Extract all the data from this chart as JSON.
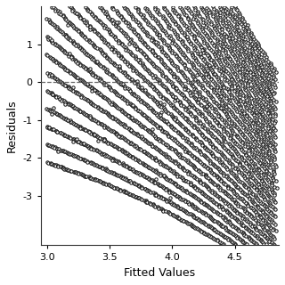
{
  "xlabel": "Fitted Values",
  "ylabel": "Residuals",
  "xlim": [
    2.95,
    4.85
  ],
  "ylim": [
    -4.3,
    2.0
  ],
  "xticks": [
    3.0,
    3.5,
    4.0,
    4.5
  ],
  "yticks": [
    1,
    0,
    -1,
    -2,
    -3
  ],
  "ytick_labels": [
    "1",
    "0",
    "-1",
    "-2",
    "-3"
  ],
  "hline_y": 0,
  "background_color": "#ffffff",
  "point_color": "white",
  "point_edgecolor": "#111111",
  "point_size": 6,
  "point_linewidth": 0.7,
  "seed": 12345
}
